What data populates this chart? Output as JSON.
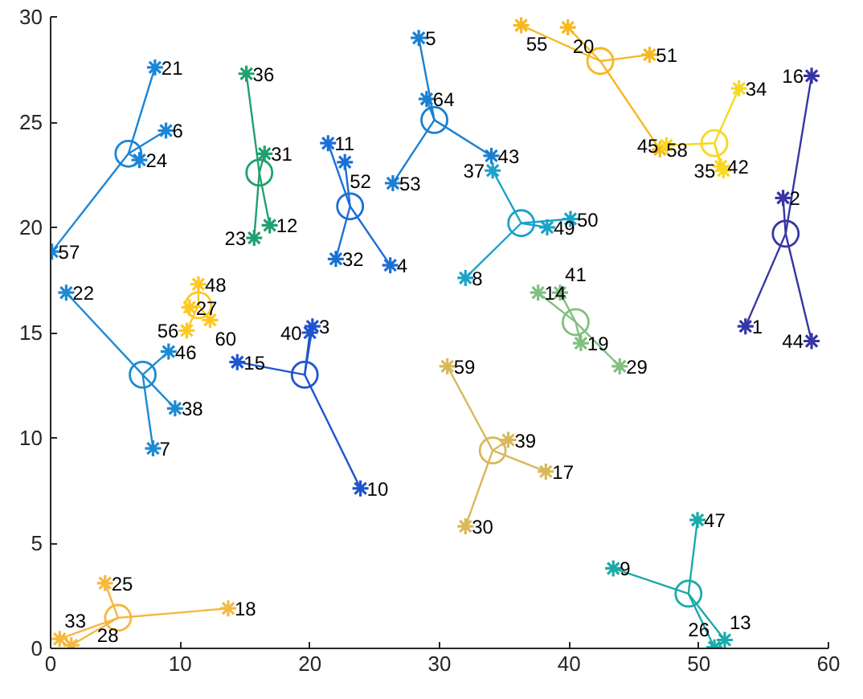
{
  "chart_data": {
    "type": "scatter",
    "xlim": [
      0,
      60
    ],
    "ylim": [
      0,
      30
    ],
    "xticks": [
      0,
      10,
      20,
      30,
      40,
      50,
      60
    ],
    "yticks": [
      0,
      5,
      10,
      15,
      20,
      25,
      30
    ],
    "grid": false,
    "series": [
      {
        "marker": "cross",
        "color": "#1a86d8",
        "x": [
          8.05,
          8.9,
          6.85,
          0.1
        ],
        "values": [
          27.6,
          24.6,
          23.2,
          18.85
        ]
      },
      {
        "marker": "circle",
        "color": "#1a86d8",
        "x": [
          6.0
        ],
        "values": [
          23.5
        ]
      },
      {
        "marker": "cross",
        "color": "#1c8ad2",
        "x": [
          1.2,
          9.1,
          9.6,
          7.9
        ],
        "values": [
          16.9,
          14.1,
          11.4,
          9.5
        ]
      },
      {
        "marker": "circle",
        "color": "#1c8ad2",
        "x": [
          7.1
        ],
        "values": [
          13.0
        ]
      },
      {
        "marker": "cross",
        "color": "#20a070",
        "x": [
          15.1,
          16.5,
          16.9,
          15.7
        ],
        "values": [
          27.3,
          23.5,
          20.1,
          19.5
        ]
      },
      {
        "marker": "circle",
        "color": "#20a070",
        "x": [
          16.1
        ],
        "values": [
          22.6
        ]
      },
      {
        "marker": "cross",
        "color": "#ffc820",
        "x": [
          11.4,
          10.7,
          12.3,
          10.5
        ],
        "values": [
          17.3,
          16.2,
          15.6,
          15.1
        ]
      },
      {
        "marker": "circle",
        "color": "#ffc820",
        "x": [
          11.4
        ],
        "values": [
          16.3
        ]
      },
      {
        "marker": "cross",
        "color": "#1f55d0",
        "x": [
          14.4,
          20.2,
          20.0,
          23.9
        ],
        "values": [
          13.6,
          15.3,
          15.0,
          7.6
        ]
      },
      {
        "marker": "circle",
        "color": "#1f55d0",
        "x": [
          19.6
        ],
        "values": [
          13.0
        ]
      },
      {
        "marker": "cross",
        "color": "#1a6fd6",
        "x": [
          21.4,
          22.7,
          22.0,
          26.2
        ],
        "values": [
          24.0,
          23.1,
          18.5,
          18.2
        ]
      },
      {
        "marker": "circle",
        "color": "#1a6fd6",
        "x": [
          23.1
        ],
        "values": [
          21.0
        ]
      },
      {
        "marker": "cross",
        "color": "#1a7fd0",
        "x": [
          28.4,
          29.0,
          26.4,
          34.0
        ],
        "values": [
          29.0,
          26.1,
          22.1,
          23.4
        ]
      },
      {
        "marker": "circle",
        "color": "#1a7fd0",
        "x": [
          29.6
        ],
        "values": [
          25.1
        ]
      },
      {
        "marker": "cross",
        "color": "#1aa2c8",
        "x": [
          34.1,
          38.3,
          40.1,
          32.0
        ],
        "values": [
          22.7,
          20.0,
          20.4,
          17.6
        ]
      },
      {
        "marker": "circle",
        "color": "#1aa2c8",
        "x": [
          36.3
        ],
        "values": [
          20.2
        ]
      },
      {
        "marker": "cross",
        "color": "#80c080",
        "x": [
          37.6,
          39.3,
          40.9,
          43.9
        ],
        "values": [
          16.9,
          16.9,
          14.5,
          13.4
        ]
      },
      {
        "marker": "circle",
        "color": "#80c080",
        "x": [
          40.5
        ],
        "values": [
          15.5
        ]
      },
      {
        "marker": "cross",
        "color": "#d9b85a",
        "x": [
          30.6,
          35.3,
          38.2,
          32.0
        ],
        "values": [
          13.4,
          9.9,
          8.4,
          5.8
        ]
      },
      {
        "marker": "circle",
        "color": "#d9b85a",
        "x": [
          34.1
        ],
        "values": [
          9.4
        ]
      },
      {
        "marker": "cross",
        "color": "#f5b840",
        "x": [
          4.2,
          13.7,
          0.7,
          1.6
        ],
        "values": [
          3.1,
          1.9,
          0.45,
          0.15
        ]
      },
      {
        "marker": "circle",
        "color": "#f5b840",
        "x": [
          5.2
        ],
        "values": [
          1.45
        ]
      },
      {
        "marker": "cross",
        "color": "#1aaaa8",
        "x": [
          49.9,
          43.4,
          52.0,
          51.2
        ],
        "values": [
          6.1,
          3.8,
          0.4,
          0.05
        ]
      },
      {
        "marker": "circle",
        "color": "#1aaaa8",
        "x": [
          49.2
        ],
        "values": [
          2.6
        ]
      },
      {
        "marker": "cross",
        "color": "#f5b820",
        "x": [
          36.3,
          39.9,
          46.2,
          47.0
        ],
        "values": [
          29.6,
          29.5,
          28.2,
          23.7
        ]
      },
      {
        "marker": "circle",
        "color": "#f5b820",
        "x": [
          42.4
        ],
        "values": [
          27.9
        ]
      },
      {
        "marker": "cross",
        "color": "#f8d820",
        "x": [
          53.1,
          51.7,
          51.9,
          47.5
        ],
        "values": [
          26.6,
          22.9,
          22.7,
          23.9
        ]
      },
      {
        "marker": "circle",
        "color": "#f8d820",
        "x": [
          51.2
        ],
        "values": [
          24.0
        ]
      },
      {
        "marker": "cross",
        "color": "#3535a5",
        "x": [
          58.7,
          56.5,
          53.6,
          58.7
        ],
        "values": [
          27.2,
          21.4,
          15.3,
          14.6
        ]
      },
      {
        "marker": "circle",
        "color": "#3535a5",
        "x": [
          56.7
        ],
        "values": [
          19.7
        ]
      }
    ],
    "annotations": [
      {
        "text": "21",
        "x": 8.05,
        "y": 27.6
      },
      {
        "text": "6",
        "x": 8.9,
        "y": 24.6
      },
      {
        "text": "24",
        "x": 6.85,
        "y": 23.2
      },
      {
        "text": "57",
        "x": 0.1,
        "y": 18.85
      },
      {
        "text": "22",
        "x": 1.2,
        "y": 16.9
      },
      {
        "text": "46",
        "x": 9.1,
        "y": 14.1
      },
      {
        "text": "38",
        "x": 9.6,
        "y": 11.4
      },
      {
        "text": "7",
        "x": 7.9,
        "y": 9.5
      },
      {
        "text": "36",
        "x": 15.1,
        "y": 27.3
      },
      {
        "text": "31",
        "x": 16.5,
        "y": 23.5
      },
      {
        "text": "12",
        "x": 16.9,
        "y": 20.1
      },
      {
        "text": "23",
        "x": 15.7,
        "y": 19.5
      },
      {
        "text": "48",
        "x": 11.4,
        "y": 17.3
      },
      {
        "text": "27",
        "x": 10.7,
        "y": 16.2
      },
      {
        "text": "60",
        "x": 12.3,
        "y": 15.6
      },
      {
        "text": "56",
        "x": 10.5,
        "y": 15.1
      },
      {
        "text": "15",
        "x": 14.4,
        "y": 13.6
      },
      {
        "text": "3",
        "x": 20.2,
        "y": 15.3
      },
      {
        "text": "40",
        "x": 20.0,
        "y": 15.0
      },
      {
        "text": "10",
        "x": 23.9,
        "y": 7.6
      },
      {
        "text": "11",
        "x": 21.4,
        "y": 24.0
      },
      {
        "text": "52",
        "x": 22.7,
        "y": 23.1
      },
      {
        "text": "32",
        "x": 22.0,
        "y": 18.5
      },
      {
        "text": "4",
        "x": 26.2,
        "y": 18.2
      },
      {
        "text": "5",
        "x": 28.4,
        "y": 29.0
      },
      {
        "text": "64",
        "x": 29.0,
        "y": 26.1
      },
      {
        "text": "53",
        "x": 26.4,
        "y": 22.1
      },
      {
        "text": "43",
        "x": 34.0,
        "y": 23.4
      },
      {
        "text": "37",
        "x": 34.1,
        "y": 22.7
      },
      {
        "text": "49",
        "x": 38.3,
        "y": 20.0
      },
      {
        "text": "50",
        "x": 40.1,
        "y": 20.4
      },
      {
        "text": "8",
        "x": 32.0,
        "y": 17.6
      },
      {
        "text": "14",
        "x": 37.6,
        "y": 16.9
      },
      {
        "text": "41",
        "x": 39.3,
        "y": 16.9
      },
      {
        "text": "19",
        "x": 40.9,
        "y": 14.5
      },
      {
        "text": "29",
        "x": 43.9,
        "y": 13.4
      },
      {
        "text": "59",
        "x": 30.6,
        "y": 13.4
      },
      {
        "text": "39",
        "x": 35.3,
        "y": 9.9
      },
      {
        "text": "17",
        "x": 38.2,
        "y": 8.4
      },
      {
        "text": "30",
        "x": 32.0,
        "y": 5.8
      },
      {
        "text": "25",
        "x": 4.2,
        "y": 3.1
      },
      {
        "text": "18",
        "x": 13.7,
        "y": 1.9
      },
      {
        "text": "33",
        "x": 0.7,
        "y": 0.45
      },
      {
        "text": "28",
        "x": 1.6,
        "y": 0.15
      },
      {
        "text": "47",
        "x": 49.9,
        "y": 6.1
      },
      {
        "text": "9",
        "x": 43.4,
        "y": 3.8
      },
      {
        "text": "13",
        "x": 52.0,
        "y": 0.4
      },
      {
        "text": "26",
        "x": 51.2,
        "y": 0.05
      },
      {
        "text": "55",
        "x": 36.3,
        "y": 29.6
      },
      {
        "text": "20",
        "x": 39.9,
        "y": 29.5
      },
      {
        "text": "51",
        "x": 46.2,
        "y": 28.2
      },
      {
        "text": "58",
        "x": 47.0,
        "y": 23.7
      },
      {
        "text": "34",
        "x": 53.1,
        "y": 26.6
      },
      {
        "text": "42",
        "x": 51.7,
        "y": 22.9
      },
      {
        "text": "35",
        "x": 51.9,
        "y": 22.7
      },
      {
        "text": "45",
        "x": 47.5,
        "y": 23.9
      },
      {
        "text": "16",
        "x": 58.7,
        "y": 27.2
      },
      {
        "text": "2",
        "x": 56.5,
        "y": 21.4
      },
      {
        "text": "1",
        "x": 53.6,
        "y": 15.3
      },
      {
        "text": "44",
        "x": 58.7,
        "y": 14.6
      }
    ]
  }
}
